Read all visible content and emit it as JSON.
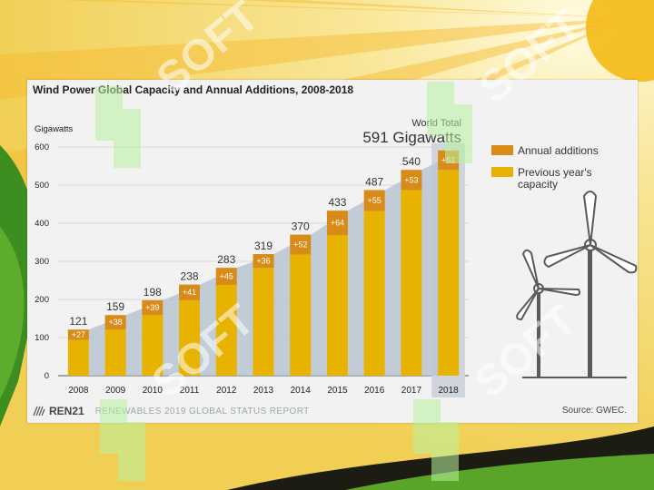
{
  "chart_data": {
    "type": "bar",
    "title": "Wind Power Global Capacity and Annual Additions, 2008-2018",
    "ylabel": "Gigawatts",
    "ylim": [
      0,
      600
    ],
    "yticks": [
      0,
      100,
      200,
      300,
      400,
      500,
      600
    ],
    "categories": [
      "2008",
      "2009",
      "2010",
      "2011",
      "2012",
      "2013",
      "2014",
      "2015",
      "2016",
      "2017",
      "2018"
    ],
    "stacked": true,
    "series": [
      {
        "name": "Previous year's capacity",
        "color": "#e8b200",
        "values": [
          94,
          121,
          159,
          198,
          238,
          283,
          318,
          369,
          432,
          487,
          540
        ]
      },
      {
        "name": "Annual additions",
        "color": "#d98b1a",
        "values": [
          27,
          38,
          39,
          41,
          45,
          36,
          52,
          64,
          55,
          53,
          51
        ]
      }
    ],
    "totals": [
      121,
      159,
      198,
      238,
      283,
      319,
      370,
      433,
      487,
      540,
      ""
    ],
    "addition_labels": [
      "+27",
      "+38",
      "+39",
      "+41",
      "+45",
      "+36",
      "+52",
      "+64",
      "+55",
      "+53",
      "+51"
    ],
    "annotation": {
      "label": "World Total",
      "value": "591 Gigawatts"
    },
    "legend": {
      "placement": "right",
      "items": [
        {
          "label": "Annual additions",
          "color": "#d98b1a"
        },
        {
          "label": "Previous year's capacity",
          "color": "#e8b200"
        }
      ]
    },
    "grid": true,
    "trend_area_color": "#b8c6d2",
    "highlight_color": "#cfd5db"
  },
  "footer": {
    "brand": "REN21",
    "report": "RENEWABLES 2019 GLOBAL STATUS REPORT",
    "source": "Source: GWEC."
  },
  "watermark": {
    "text": "SOFT"
  }
}
